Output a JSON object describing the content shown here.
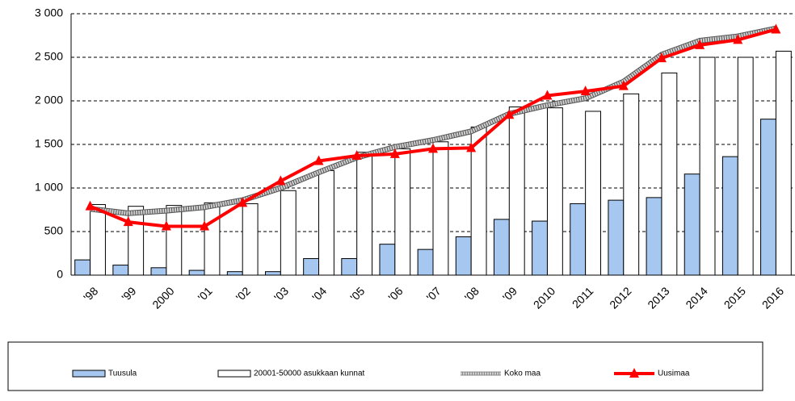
{
  "chart_data": {
    "type": "bar",
    "categories": [
      "'98",
      "'99",
      "2000",
      "'01",
      "'02",
      "'03",
      "'04",
      "'05",
      "'06",
      "'07",
      "'08",
      "'09",
      "2010",
      "2011",
      "2012",
      "2013",
      "2014",
      "2015",
      "2016"
    ],
    "series": [
      {
        "name": "Tuusula",
        "type": "bar",
        "color": "#a6c8f0",
        "values": [
          175,
          115,
          85,
          55,
          40,
          40,
          190,
          190,
          355,
          295,
          440,
          640,
          620,
          820,
          860,
          890,
          1160,
          1360,
          1790
        ]
      },
      {
        "name": "20001-50000 asukkaan kunnat",
        "type": "bar",
        "color": "#ffffff",
        "values": [
          810,
          790,
          800,
          830,
          820,
          970,
          1200,
          1410,
          1450,
          1530,
          1700,
          1930,
          1920,
          1880,
          2080,
          2320,
          2500,
          2500,
          2570
        ]
      },
      {
        "name": "Koko maa",
        "type": "line",
        "color": "#a0a0a0",
        "values": [
          760,
          710,
          740,
          780,
          860,
          1000,
          1180,
          1350,
          1470,
          1550,
          1650,
          1850,
          1950,
          2030,
          2220,
          2530,
          2690,
          2740,
          2830
        ]
      },
      {
        "name": "Uusimaa",
        "type": "line",
        "color": "#ff0000",
        "marker": "triangle",
        "values": [
          790,
          610,
          560,
          560,
          830,
          1080,
          1310,
          1370,
          1390,
          1450,
          1460,
          1840,
          2060,
          2110,
          2170,
          2490,
          2640,
          2700,
          2820
        ]
      }
    ],
    "ylim": [
      0,
      3000
    ],
    "yticks": [
      0,
      500,
      {
        "value": 1000,
        "label": "1 000"
      },
      {
        "value": 1500,
        "label": "1 500"
      },
      {
        "value": 2000,
        "label": "2 000"
      },
      {
        "value": 2500,
        "label": "2 500"
      },
      {
        "value": 3000,
        "label": "3 000"
      }
    ],
    "grid": true,
    "legend": "bottom"
  }
}
